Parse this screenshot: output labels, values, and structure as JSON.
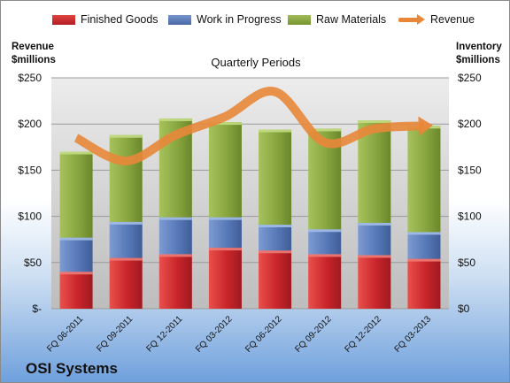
{
  "company": "OSI Systems",
  "left_axis_title": [
    "Revenue",
    "$millions"
  ],
  "right_axis_title": [
    "Inventory",
    "$millions"
  ],
  "colors": {
    "finished": "#c9252b",
    "wip": "#5879b8",
    "raw": "#88a63f",
    "revenue": "#e8873a"
  },
  "chart_data": {
    "type": "bar",
    "subtitle": "Quarterly Periods",
    "categories": [
      "FQ 06-2011",
      "FQ 09-2011",
      "FQ 12-2011",
      "FQ 03-2012",
      "FQ 06-2012",
      "FQ 09-2012",
      "FQ 12-2012",
      "FQ 03-2013"
    ],
    "stacked": true,
    "series": [
      {
        "name": "Finished Goods",
        "values": [
          40,
          55,
          59,
          66,
          63,
          59,
          58,
          54
        ]
      },
      {
        "name": "Work in Progress",
        "values": [
          37,
          39,
          40,
          33,
          28,
          27,
          35,
          29
        ]
      },
      {
        "name": "Raw Materials",
        "values": [
          93,
          94,
          107,
          103,
          103,
          109,
          111,
          115
        ]
      }
    ],
    "line_series": {
      "name": "Revenue",
      "values": [
        185,
        160,
        188,
        208,
        235,
        180,
        195,
        198
      ]
    },
    "ylim": [
      0,
      250
    ],
    "yticks_left": [
      "$-",
      "$50",
      "$100",
      "$150",
      "$200",
      "$250"
    ],
    "yticks_right": [
      "$0",
      "$50",
      "$100",
      "$150",
      "$200",
      "$250"
    ],
    "ytick_values": [
      0,
      50,
      100,
      150,
      200,
      250
    ],
    "grid": true,
    "legend_position": "top"
  }
}
